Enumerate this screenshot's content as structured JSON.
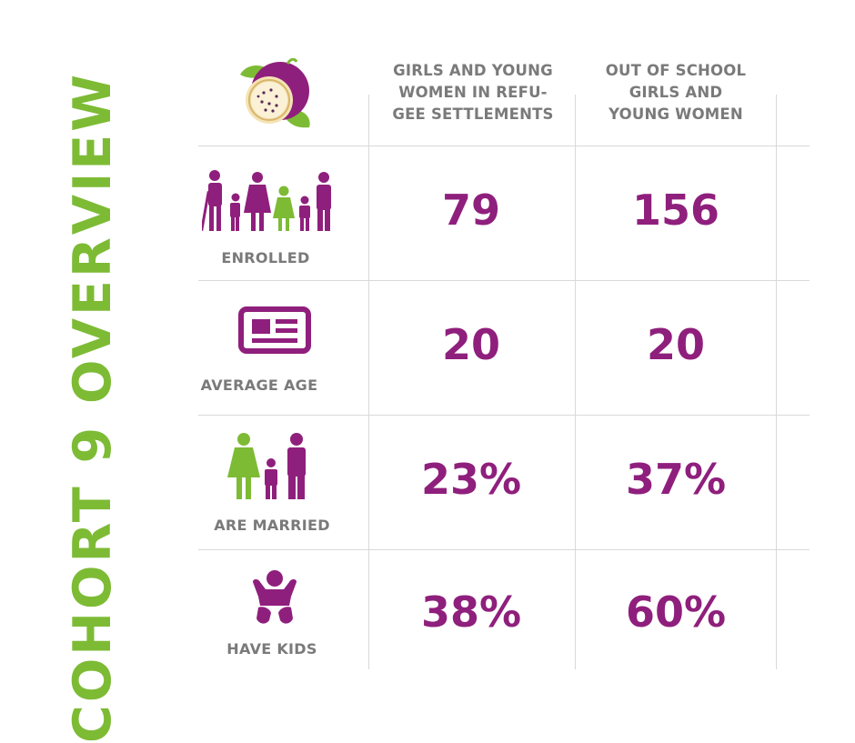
{
  "title": "COHORT 9 OVERVIEW",
  "columns": [
    [
      "GIRLS AND YOUNG",
      "WOMEN IN REFU-",
      "GEE SETTLEMENTS"
    ],
    [
      "OUT OF SCHOOL",
      "GIRLS AND",
      "YOUNG WOMEN"
    ]
  ],
  "rows": [
    {
      "label": "ENROLLED",
      "icon": "family-icon",
      "values": [
        "79",
        "156"
      ]
    },
    {
      "label": "AVERAGE AGE",
      "icon": "id-card-icon",
      "values": [
        "20",
        "20"
      ]
    },
    {
      "label": "ARE MARRIED",
      "icon": "couple-with-child-icon",
      "values": [
        "23%",
        "37%"
      ]
    },
    {
      "label": "HAVE KIDS",
      "icon": "baby-icon",
      "values": [
        "38%",
        "60%"
      ]
    }
  ],
  "colors": {
    "purple": "#8f1f7c",
    "green": "#7dbb35",
    "gray": "#7a7a7a",
    "line": "#d9d9d9"
  }
}
